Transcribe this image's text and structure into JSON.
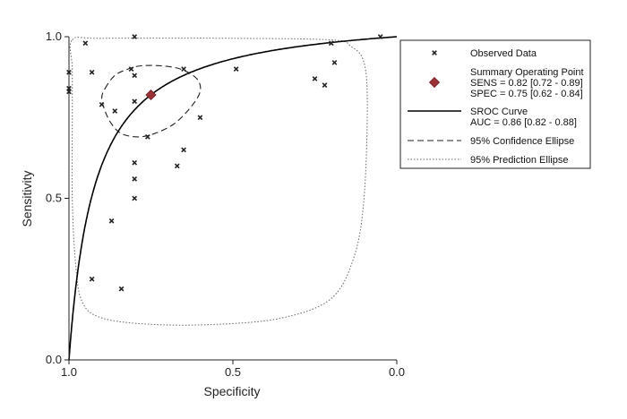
{
  "chart_data": {
    "type": "scatter",
    "xlabel": "Specificity",
    "ylabel": "Sensitivity",
    "xlim": [
      1.0,
      0.0
    ],
    "ylim": [
      0.0,
      1.0
    ],
    "x_ticks": [
      "1.0",
      "0.5",
      "0.0"
    ],
    "y_ticks": [
      "0.0",
      "0.5",
      "1.0"
    ],
    "grid": false,
    "legend_position": "top-right",
    "observed_data": {
      "name": "Observed Data",
      "marker": "x",
      "color": "#222222",
      "points": [
        {
          "spec": 1.0,
          "sens": 0.89
        },
        {
          "spec": 1.0,
          "sens": 0.84
        },
        {
          "spec": 1.0,
          "sens": 0.83
        },
        {
          "spec": 0.95,
          "sens": 0.98
        },
        {
          "spec": 0.93,
          "sens": 0.89
        },
        {
          "spec": 0.8,
          "sens": 1.0
        },
        {
          "spec": 0.81,
          "sens": 0.9
        },
        {
          "spec": 0.8,
          "sens": 0.88
        },
        {
          "spec": 0.9,
          "sens": 0.79
        },
        {
          "spec": 0.8,
          "sens": 0.8
        },
        {
          "spec": 0.86,
          "sens": 0.77
        },
        {
          "spec": 0.65,
          "sens": 0.9
        },
        {
          "spec": 0.49,
          "sens": 0.9
        },
        {
          "spec": 0.6,
          "sens": 0.75
        },
        {
          "spec": 0.76,
          "sens": 0.69
        },
        {
          "spec": 0.65,
          "sens": 0.65
        },
        {
          "spec": 0.67,
          "sens": 0.6
        },
        {
          "spec": 0.8,
          "sens": 0.61
        },
        {
          "spec": 0.8,
          "sens": 0.56
        },
        {
          "spec": 0.8,
          "sens": 0.5
        },
        {
          "spec": 0.87,
          "sens": 0.43
        },
        {
          "spec": 0.93,
          "sens": 0.25
        },
        {
          "spec": 0.84,
          "sens": 0.22
        },
        {
          "spec": 0.2,
          "sens": 0.98
        },
        {
          "spec": 0.05,
          "sens": 1.0
        },
        {
          "spec": 0.19,
          "sens": 0.92
        },
        {
          "spec": 0.25,
          "sens": 0.87
        },
        {
          "spec": 0.22,
          "sens": 0.85
        }
      ]
    },
    "summary_point": {
      "name": "Summary Operating Point",
      "spec": 0.75,
      "sens": 0.82,
      "color": "#9b3238"
    },
    "sroc_curve": {
      "name": "SROC Curve",
      "auc": 0.86,
      "color": "#000000"
    },
    "confidence_ellipse": {
      "name": "95% Confidence Ellipse",
      "points": [
        [
          0.89,
          0.84
        ],
        [
          0.86,
          0.88
        ],
        [
          0.82,
          0.9
        ],
        [
          0.78,
          0.91
        ],
        [
          0.72,
          0.91
        ],
        [
          0.66,
          0.9
        ],
        [
          0.61,
          0.87
        ],
        [
          0.6,
          0.83
        ],
        [
          0.63,
          0.78
        ],
        [
          0.68,
          0.73
        ],
        [
          0.74,
          0.7
        ],
        [
          0.79,
          0.69
        ],
        [
          0.84,
          0.7
        ],
        [
          0.87,
          0.73
        ],
        [
          0.89,
          0.77
        ],
        [
          0.9,
          0.81
        ]
      ]
    },
    "prediction_ellipse": {
      "name": "95% Prediction Ellipse",
      "points": [
        [
          0.99,
          0.99
        ],
        [
          0.9,
          0.995
        ],
        [
          0.5,
          0.995
        ],
        [
          0.2,
          0.99
        ],
        [
          0.14,
          0.97
        ],
        [
          0.1,
          0.92
        ],
        [
          0.09,
          0.78
        ],
        [
          0.1,
          0.5
        ],
        [
          0.13,
          0.32
        ],
        [
          0.2,
          0.19
        ],
        [
          0.35,
          0.13
        ],
        [
          0.55,
          0.11
        ],
        [
          0.75,
          0.11
        ],
        [
          0.9,
          0.13
        ],
        [
          0.96,
          0.18
        ],
        [
          0.98,
          0.3
        ],
        [
          0.99,
          0.5
        ],
        [
          0.99,
          0.75
        ],
        [
          0.99,
          0.9
        ]
      ]
    },
    "legend": [
      {
        "kind": "marker",
        "lines": [
          "Observed Data"
        ]
      },
      {
        "kind": "diamond",
        "lines": [
          "Summary Operating Point",
          "SENS = 0.82 [0.72 - 0.89]",
          "SPEC = 0.75 [0.62 - 0.84]"
        ]
      },
      {
        "kind": "solid",
        "lines": [
          "SROC Curve",
          "AUC = 0.86 [0.82 - 0.88]"
        ]
      },
      {
        "kind": "dashed",
        "lines": [
          "95% Confidence Ellipse"
        ]
      },
      {
        "kind": "dotted",
        "lines": [
          "95% Prediction Ellipse"
        ]
      }
    ]
  }
}
